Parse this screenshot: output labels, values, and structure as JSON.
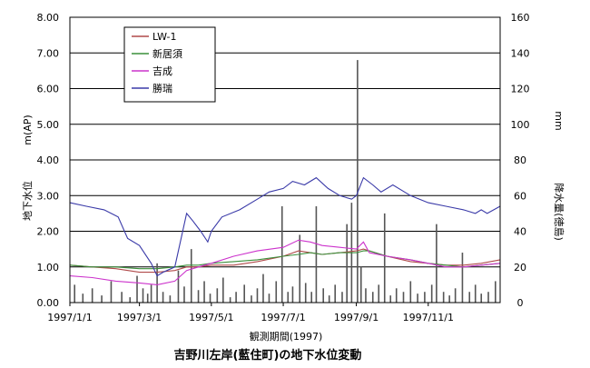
{
  "chart_data": {
    "type": "line",
    "title": "吉野川左岸(藍住町)の地下水位変動",
    "xlabel": "観測期間(1997)",
    "ylabel_left": "地下水位",
    "ylabel_left_unit": "m(AP)",
    "ylabel_right": "降水量(徳島)",
    "ylabel_right_unit": "mm",
    "ylim_left": [
      0,
      8
    ],
    "ylim_right": [
      0,
      160
    ],
    "y_ticks_left": [
      "0.00",
      "1.00",
      "2.00",
      "3.00",
      "4.00",
      "5.00",
      "6.00",
      "7.00",
      "8.00"
    ],
    "y_ticks_right": [
      "0",
      "20",
      "40",
      "60",
      "80",
      "100",
      "120",
      "140",
      "160"
    ],
    "x_range": [
      1,
      366
    ],
    "x_ticks": [
      {
        "label": "1997/1/1",
        "day": 1
      },
      {
        "label": "1997/3/1",
        "day": 60
      },
      {
        "label": "1997/5/1",
        "day": 121
      },
      {
        "label": "1997/7/1",
        "day": 182
      },
      {
        "label": "1997/9/1",
        "day": 244
      },
      {
        "label": "1997/11/1",
        "day": 305
      }
    ],
    "grid": "horizontal",
    "legend_position": "top-left",
    "series": [
      {
        "name": "LW-1",
        "color": "#b04a4a",
        "x": [
          1,
          20,
          40,
          60,
          75,
          90,
          100,
          110,
          121,
          140,
          160,
          182,
          195,
          205,
          215,
          230,
          244,
          250,
          255,
          270,
          290,
          305,
          320,
          335,
          350,
          366
        ],
        "values": [
          1.05,
          1.0,
          0.95,
          0.85,
          0.85,
          0.9,
          1.0,
          1.0,
          1.05,
          1.05,
          1.15,
          1.3,
          1.45,
          1.4,
          1.35,
          1.4,
          1.45,
          1.5,
          1.45,
          1.3,
          1.15,
          1.1,
          1.05,
          1.05,
          1.1,
          1.2
        ]
      },
      {
        "name": "新居須",
        "color": "#3a8f3a",
        "x": [
          1,
          20,
          40,
          60,
          75,
          90,
          100,
          110,
          121,
          140,
          160,
          182,
          195,
          205,
          215,
          230,
          244,
          250,
          255,
          270,
          290,
          305,
          320,
          335,
          350,
          366
        ],
        "values": [
          1.05,
          1.0,
          1.0,
          0.95,
          0.95,
          1.0,
          1.05,
          1.05,
          1.1,
          1.15,
          1.2,
          1.3,
          1.35,
          1.4,
          1.35,
          1.4,
          1.4,
          1.45,
          1.45,
          1.3,
          1.2,
          1.1,
          1.05,
          1.0,
          1.05,
          1.1
        ]
      },
      {
        "name": "吉成",
        "color": "#cc33cc",
        "x": [
          1,
          20,
          40,
          60,
          75,
          90,
          100,
          110,
          121,
          140,
          160,
          182,
          195,
          205,
          215,
          230,
          244,
          250,
          255,
          270,
          290,
          305,
          320,
          335,
          350,
          366
        ],
        "values": [
          0.75,
          0.7,
          0.6,
          0.55,
          0.5,
          0.6,
          0.9,
          1.0,
          1.1,
          1.3,
          1.45,
          1.55,
          1.75,
          1.7,
          1.6,
          1.55,
          1.5,
          1.7,
          1.4,
          1.3,
          1.2,
          1.1,
          1.0,
          1.0,
          1.05,
          1.1
        ]
      },
      {
        "name": "勝瑞",
        "color": "#3a3aa8",
        "x": [
          1,
          15,
          30,
          42,
          50,
          60,
          70,
          75,
          80,
          90,
          100,
          105,
          112,
          118,
          121,
          130,
          145,
          160,
          170,
          182,
          190,
          200,
          210,
          220,
          230,
          240,
          244,
          250,
          258,
          265,
          275,
          290,
          305,
          320,
          335,
          345,
          350,
          355,
          366
        ],
        "values": [
          2.8,
          2.7,
          2.6,
          2.4,
          1.8,
          1.6,
          1.1,
          0.75,
          0.85,
          1.0,
          2.5,
          2.3,
          2.0,
          1.7,
          2.0,
          2.4,
          2.6,
          2.9,
          3.1,
          3.2,
          3.4,
          3.3,
          3.5,
          3.2,
          3.0,
          2.9,
          3.0,
          3.5,
          3.3,
          3.1,
          3.3,
          3.0,
          2.8,
          2.7,
          2.6,
          2.5,
          2.6,
          2.5,
          2.7
        ]
      }
    ],
    "rainfall": {
      "name": "降水量",
      "color": "#555555",
      "days": [
        5,
        12,
        20,
        28,
        36,
        45,
        52,
        58,
        63,
        67,
        70,
        75,
        80,
        86,
        93,
        98,
        104,
        110,
        115,
        120,
        126,
        131,
        137,
        142,
        149,
        155,
        160,
        165,
        170,
        176,
        181,
        186,
        190,
        196,
        201,
        206,
        210,
        216,
        221,
        226,
        232,
        236,
        240,
        245,
        248,
        252,
        258,
        263,
        268,
        273,
        278,
        284,
        290,
        296,
        302,
        308,
        312,
        318,
        323,
        328,
        334,
        340,
        345,
        350,
        356,
        362
      ],
      "mm": [
        10,
        5,
        8,
        4,
        12,
        6,
        3,
        15,
        8,
        5,
        10,
        22,
        6,
        4,
        18,
        9,
        30,
        7,
        12,
        5,
        8,
        14,
        3,
        6,
        10,
        4,
        8,
        16,
        5,
        12,
        54,
        6,
        9,
        38,
        11,
        6,
        54,
        8,
        4,
        10,
        6,
        44,
        56,
        136,
        20,
        8,
        6,
        10,
        50,
        4,
        8,
        6,
        12,
        5,
        6,
        10,
        44,
        6,
        4,
        8,
        28,
        6,
        10,
        5,
        6,
        12
      ]
    }
  }
}
